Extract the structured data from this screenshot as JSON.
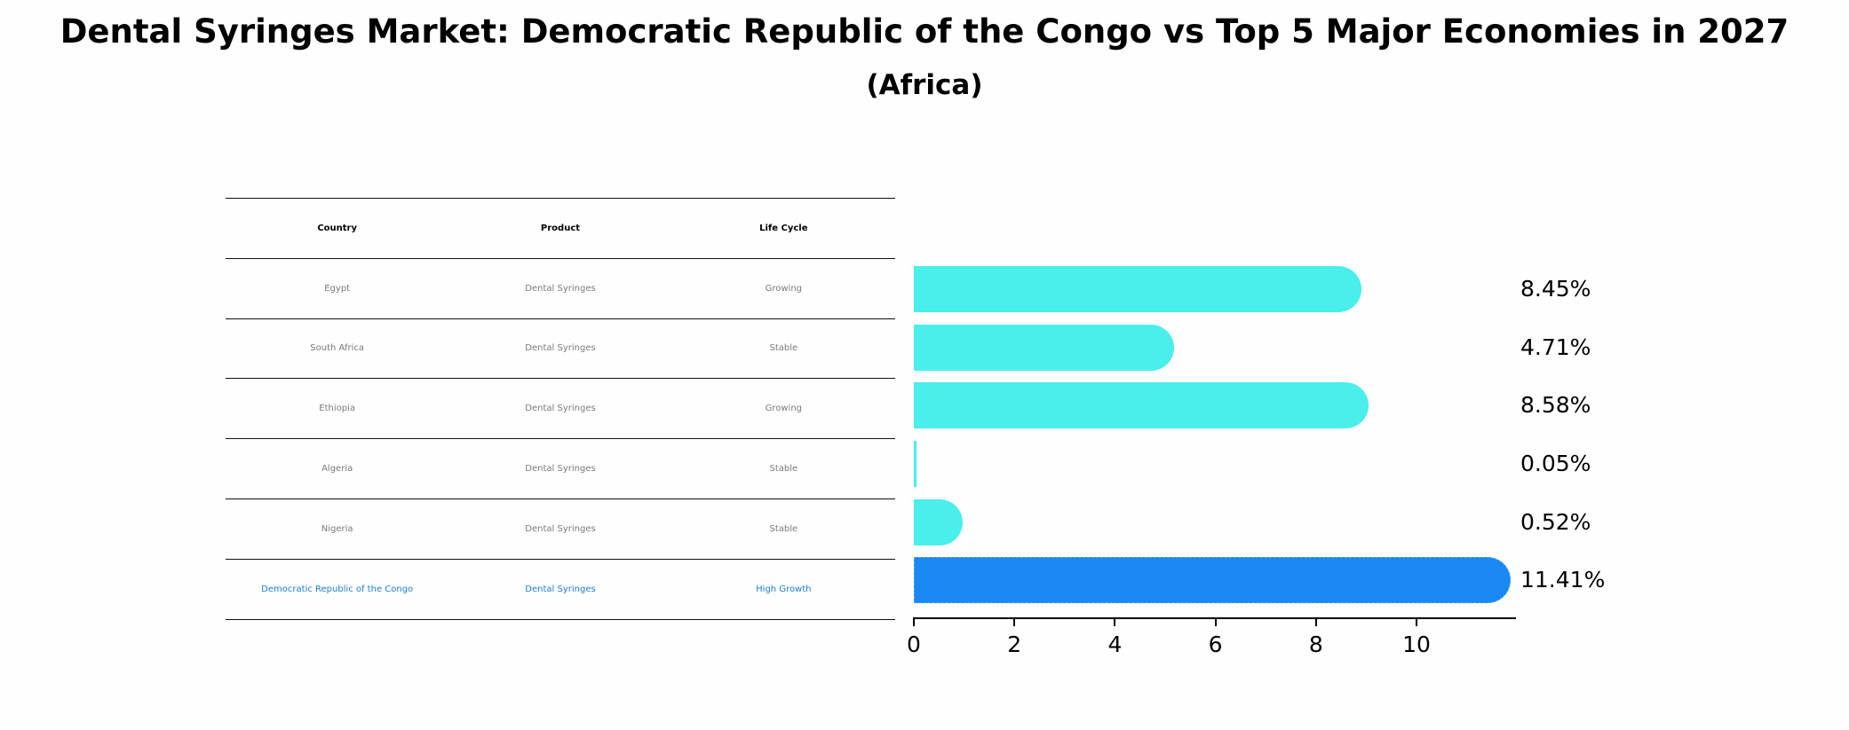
{
  "title": "Dental Syringes Market: Democratic Republic of the Congo vs Top 5 Major Economies in 2027",
  "subtitle": "(Africa)",
  "table": {
    "headers": [
      "Country",
      "Product",
      "Life Cycle"
    ],
    "rows": [
      [
        "Egypt",
        "Dental Syringes",
        "Growing"
      ],
      [
        "South Africa",
        "Dental Syringes",
        "Stable"
      ],
      [
        "Ethiopia",
        "Dental Syringes",
        "Growing"
      ],
      [
        "Algeria",
        "Dental Syringes",
        "Stable"
      ],
      [
        "Nigeria",
        "Dental Syringes",
        "Stable"
      ],
      [
        "Democratic Republic of the Congo",
        "Dental Syringes",
        "High Growth"
      ]
    ],
    "highlight_row": 5
  },
  "colors": {
    "default_bar": "#4aeeea",
    "highlight_bar": "#1a87f2",
    "highlight_text": "#1a7fd4",
    "muted_text": "#7a7a7a"
  },
  "chart_data": {
    "type": "bar",
    "orientation": "horizontal",
    "title": "Dental Syringes Market: Democratic Republic of the Congo vs Top 5 Major Economies in 2027",
    "subtitle": "(Africa)",
    "categories": [
      "Egypt",
      "South Africa",
      "Ethiopia",
      "Algeria",
      "Nigeria",
      "Democratic Republic of the Congo"
    ],
    "values": [
      8.45,
      4.71,
      8.58,
      0.05,
      0.52,
      11.41
    ],
    "value_labels": [
      "8.45%",
      "4.71%",
      "8.58%",
      "0.05%",
      "0.52%",
      "11.41%"
    ],
    "highlight": "Democratic Republic of the Congo",
    "xlabel": "",
    "ylabel": "",
    "xticks": [
      "0",
      "2",
      "4",
      "6",
      "8",
      "10"
    ],
    "xlim": [
      0,
      12
    ],
    "grid": false,
    "legend": "none"
  }
}
